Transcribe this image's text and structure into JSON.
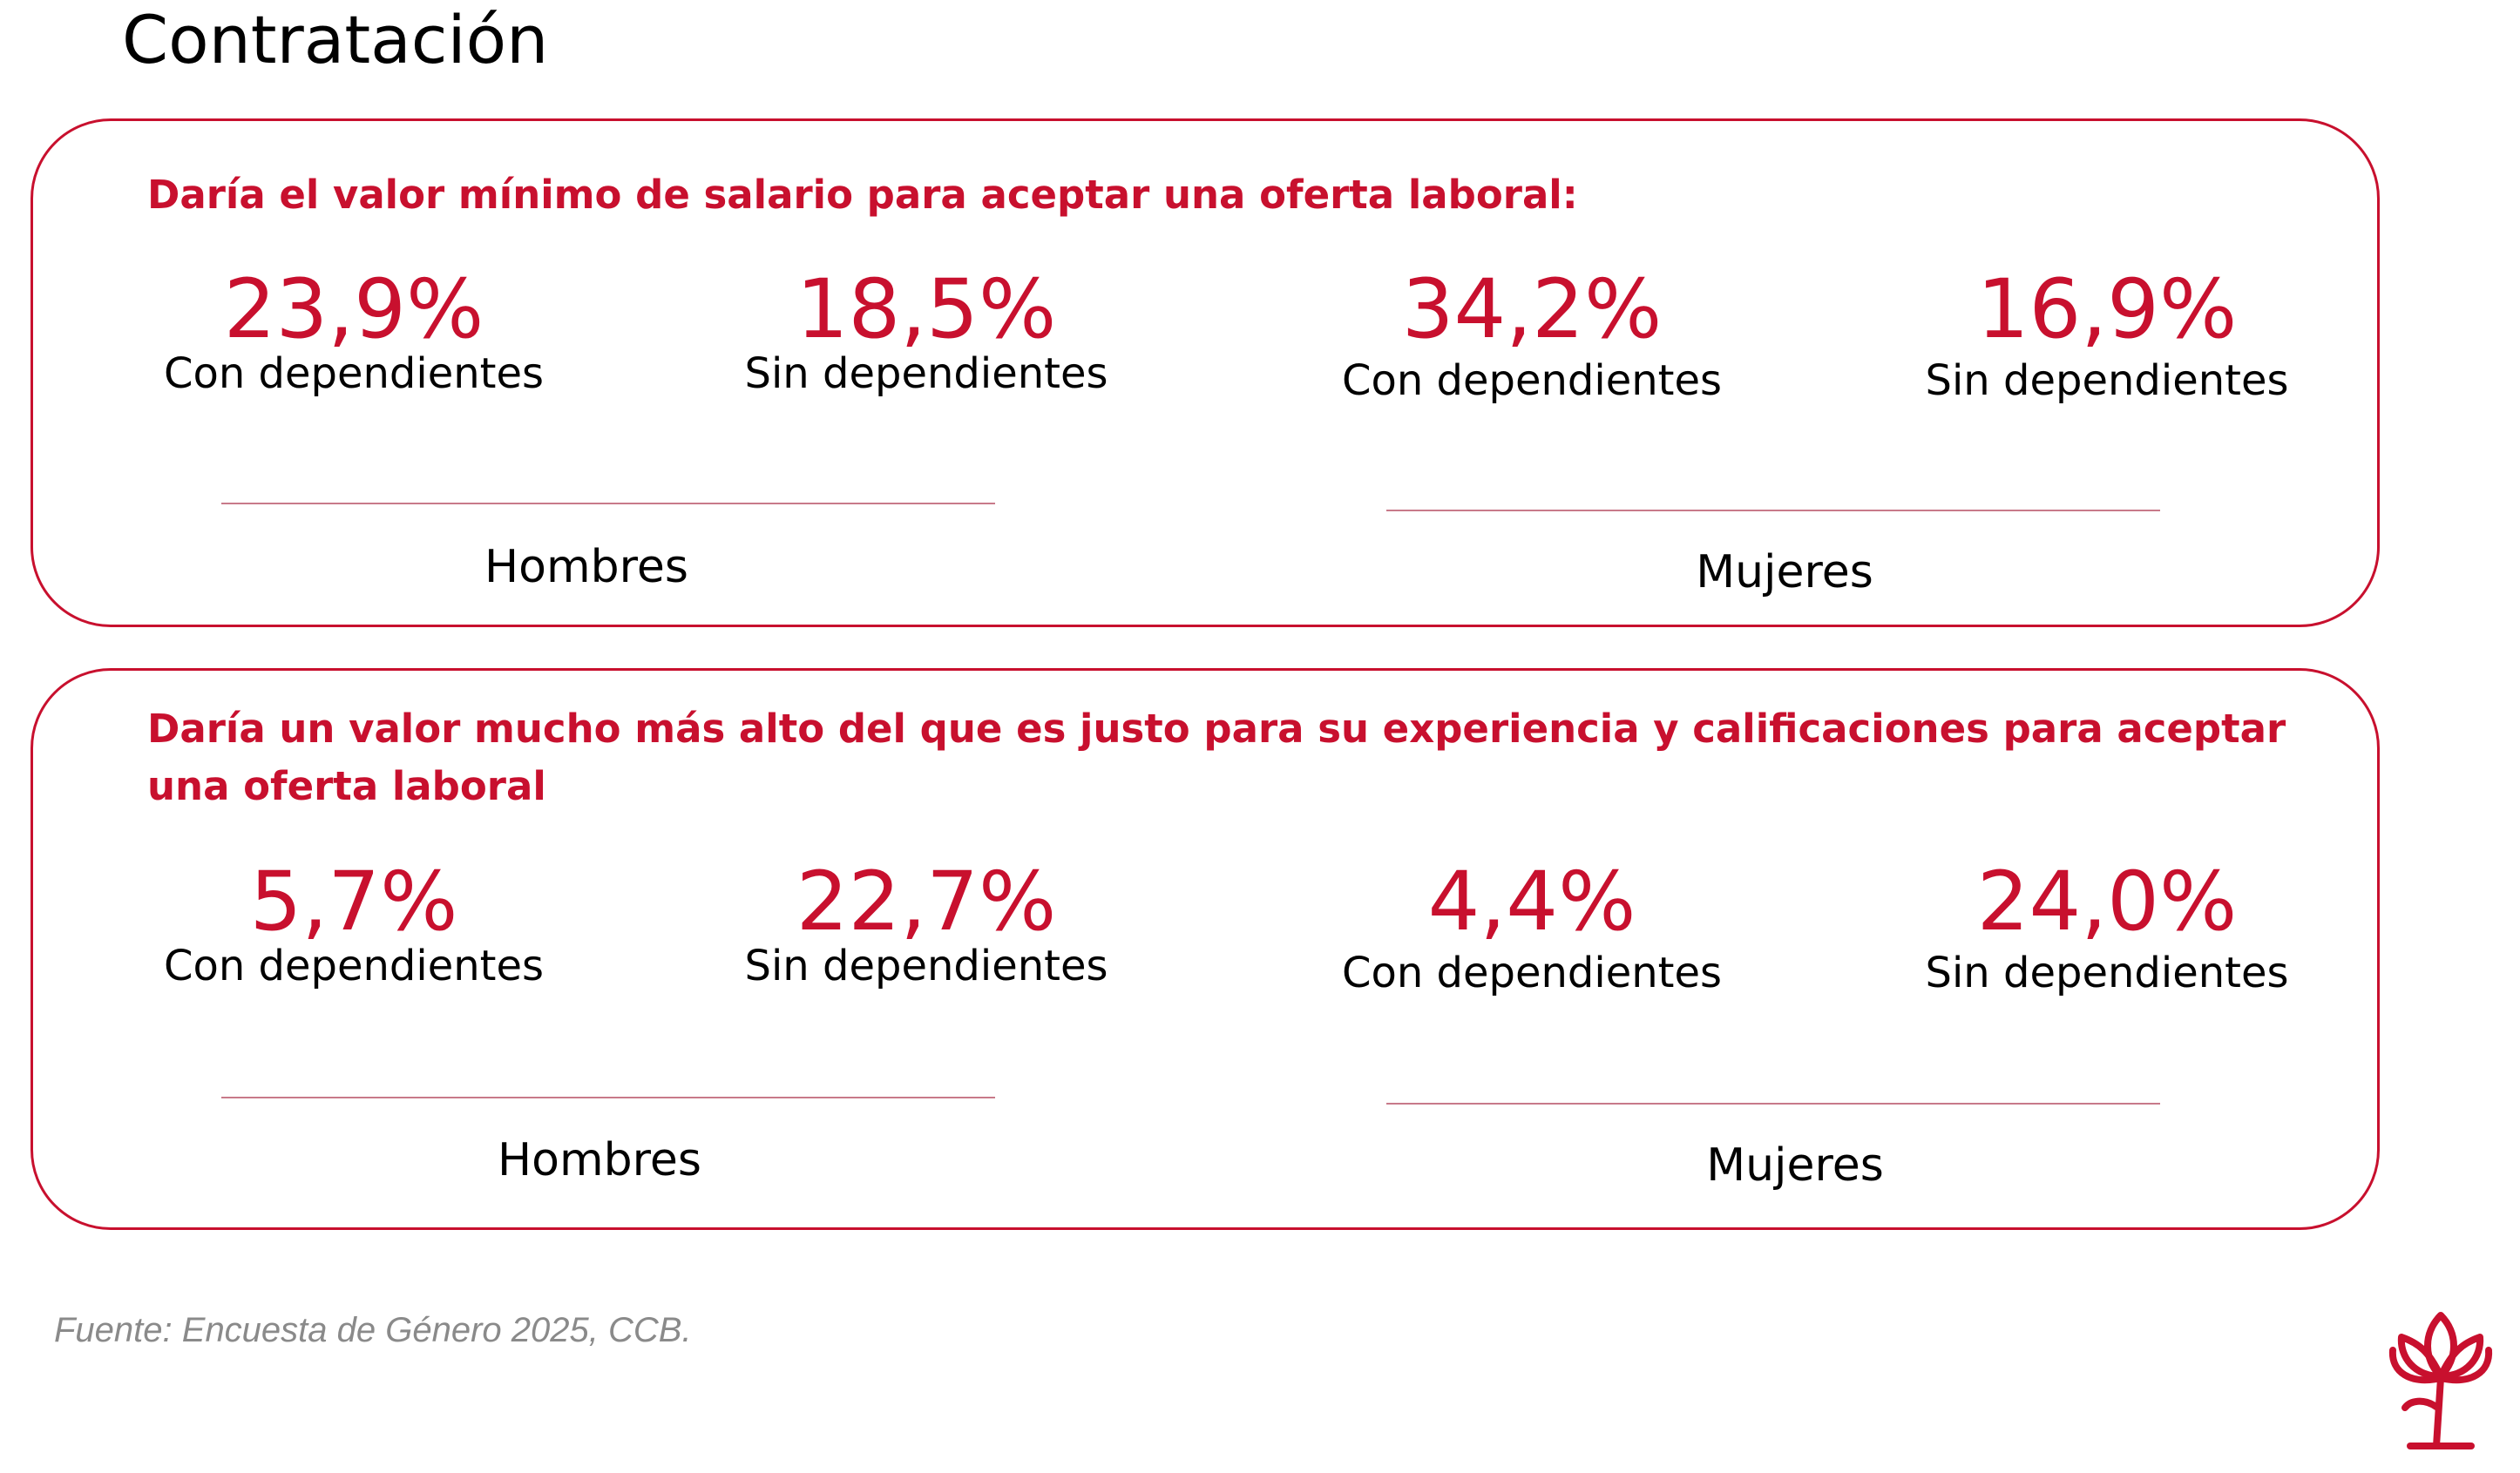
{
  "page": {
    "title": "Contratación"
  },
  "section_1": {
    "question": "Daría el valor mínimo de salario para aceptar una oferta laboral:",
    "hombres": {
      "label": "Hombres",
      "con": {
        "value": "23,9%",
        "label": "Con dependientes"
      },
      "sin": {
        "value": "18,5%",
        "label": "Sin dependientes"
      }
    },
    "mujeres": {
      "label": "Mujeres",
      "con": {
        "value": "34,2%",
        "label": "Con dependientes"
      },
      "sin": {
        "value": "16,9%",
        "label": "Sin dependientes"
      }
    }
  },
  "section_2": {
    "question": "Daría un valor mucho más alto del que es justo para su experiencia y calificaciones para aceptar una oferta laboral",
    "hombres": {
      "label": "Hombres",
      "con": {
        "value": "5,7%",
        "label": "Con dependientes"
      },
      "sin": {
        "value": "22,7%",
        "label": "Sin dependientes"
      }
    },
    "mujeres": {
      "label": "Mujeres",
      "con": {
        "value": "4,4%",
        "label": "Con dependientes"
      },
      "sin": {
        "value": "24,0%",
        "label": "Sin dependientes"
      }
    }
  },
  "footer": {
    "source": "Fuente: Encuesta de Género 2025, CCB."
  },
  "colors": {
    "accent": "#c8102e",
    "text": "#000000",
    "muted": "#8a8a8a",
    "divider": "#c87a8a"
  },
  "icons": {
    "logo": "flower-logo-icon"
  }
}
